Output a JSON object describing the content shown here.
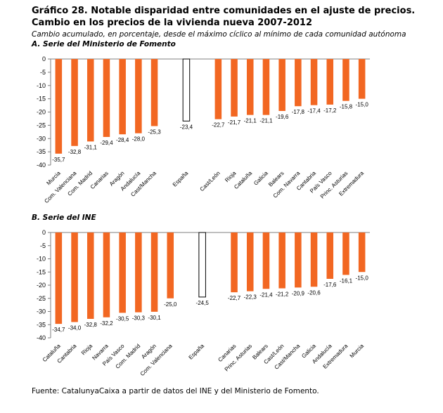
{
  "title": "Gráfico 28. Notable disparidad entre comunidades en el ajuste de precios. Cambio en los precios de la vivienda nueva 2007-2012",
  "subtitle": "Cambio acumulado, en porcentaje, desde el máximo cíclico al mínimo de cada comunidad autónoma",
  "source": "Fuente: CatalunyaCaixa a partir de datos del INE y del Ministerio de Fomento.",
  "colors": {
    "bar": "#f26722",
    "highlight_fill": "#ffffff",
    "highlight_stroke": "#000000",
    "axis": "#7f7f7f"
  },
  "chart_data": [
    {
      "type": "bar",
      "title": "A. Serie del Ministerio de Fomento",
      "ylim": [
        -40,
        0
      ],
      "yticks": [
        "0",
        "-5",
        "-10",
        "-15",
        "-20",
        "-25",
        "-30",
        "-35",
        "-40"
      ],
      "highlight": "España",
      "categories": [
        "Murcia",
        "Com. Valenciana",
        "Com. Madrid",
        "Canarias",
        "Aragón",
        "Andalucía",
        "Cast/Mancha",
        "",
        "España",
        "",
        "Cast/León",
        "Rioja",
        "Cataluña",
        "Galicia",
        "Balears",
        "Com. Navarra",
        "Cantabria",
        "País Vasco",
        "Princ. Asturias",
        "Extremadura"
      ],
      "values": [
        -35.7,
        -32.8,
        -31.1,
        -29.4,
        -28.4,
        -28.0,
        -25.3,
        null,
        -23.4,
        null,
        -22.7,
        -21.7,
        -21.1,
        -21.1,
        -19.6,
        -17.8,
        -17.4,
        -17.2,
        -15.8,
        -15.0
      ],
      "labels": [
        "-35,7",
        "-32,8",
        "-31,1",
        "-29,4",
        "-28,4",
        "-28,0",
        "-25,3",
        "",
        "-23,4",
        "",
        "-22,7",
        "-21,7",
        "-21,1",
        "-21,1",
        "-19,6",
        "-17,8",
        "-17,4",
        "-17,2",
        "-15,8",
        "-15,0"
      ]
    },
    {
      "type": "bar",
      "title": "B. Serie del INE",
      "ylim": [
        -40,
        0
      ],
      "yticks": [
        "0",
        "-5",
        "-10",
        "-15",
        "-20",
        "-25",
        "-30",
        "-35",
        "-40"
      ],
      "highlight": "España",
      "categories": [
        "Cataluña",
        "Cantabria",
        "Rioja",
        "Navarra",
        "País Vasco",
        "Com. Madrid",
        "Aragón",
        "Com. Valenciana",
        "",
        "España",
        "",
        "Canarias",
        "Princ. Asturias",
        "Balears",
        "Cast/León",
        "Cast/Mancha",
        "Galicia",
        "Andalucía",
        "Extremadura",
        "Murcia"
      ],
      "values": [
        -34.7,
        -34.0,
        -32.8,
        -32.2,
        -30.5,
        -30.3,
        -30.1,
        -25.0,
        null,
        -24.5,
        null,
        -22.7,
        -22.3,
        -21.4,
        -21.2,
        -20.9,
        -20.6,
        -17.6,
        -16.1,
        -15.0
      ],
      "labels": [
        "-34,7",
        "-34,0",
        "-32,8",
        "-32,2",
        "-30,5",
        "-30,3",
        "-30,1",
        "-25,0",
        "",
        "-24,5",
        "",
        "-22,7",
        "-22,3",
        "-21,4",
        "-21,2",
        "-20,9",
        "-20,6",
        "-17,6",
        "-16,1",
        "-15,0"
      ]
    }
  ]
}
